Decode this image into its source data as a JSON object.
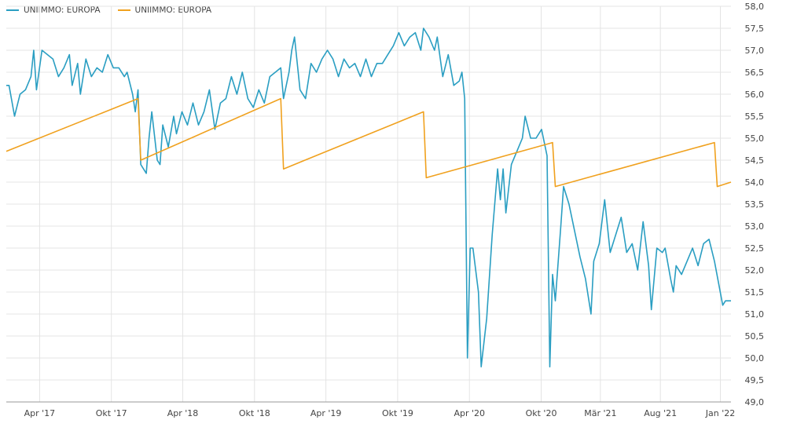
{
  "colors": {
    "series1": "#2a9ec2",
    "series2": "#f0a11e",
    "grid": "#e4e4e4",
    "axis": "#999999"
  },
  "chart_data": {
    "type": "line",
    "title": "",
    "xlabel": "",
    "ylabel": "",
    "ylim": [
      49.0,
      58.0
    ],
    "y_ticks": [
      "58,0",
      "57,5",
      "57,0",
      "56,5",
      "56,0",
      "55,5",
      "55,0",
      "54,5",
      "54,0",
      "53,5",
      "53,0",
      "52,5",
      "52,0",
      "51,5",
      "51,0",
      "50,5",
      "50,0",
      "49,5",
      "49,0"
    ],
    "x_ticks": [
      "Apr '17",
      "Okt '17",
      "Apr '18",
      "Okt '18",
      "Apr '19",
      "Okt '19",
      "Apr '20",
      "Okt '20",
      "Mär '21",
      "Aug '21",
      "Jan '22"
    ],
    "x_range": [
      "2017-01-06",
      "2022-01-14"
    ],
    "grid": true,
    "legend_position": "top-left",
    "series": [
      {
        "name": "UNIIMMO: EUROPA",
        "color": "#2a9ec2",
        "points": [
          [
            "2017-01-06",
            56.2
          ],
          [
            "2017-01-13",
            56.2
          ],
          [
            "2017-01-27",
            55.5
          ],
          [
            "2017-02-10",
            56.0
          ],
          [
            "2017-02-24",
            56.1
          ],
          [
            "2017-03-10",
            56.4
          ],
          [
            "2017-03-17",
            57.0
          ],
          [
            "2017-03-24",
            56.1
          ],
          [
            "2017-04-07",
            57.0
          ],
          [
            "2017-04-21",
            56.9
          ],
          [
            "2017-05-05",
            56.8
          ],
          [
            "2017-05-19",
            56.4
          ],
          [
            "2017-06-02",
            56.6
          ],
          [
            "2017-06-16",
            56.9
          ],
          [
            "2017-06-23",
            56.2
          ],
          [
            "2017-07-07",
            56.7
          ],
          [
            "2017-07-14",
            56.0
          ],
          [
            "2017-07-28",
            56.8
          ],
          [
            "2017-08-11",
            56.4
          ],
          [
            "2017-08-25",
            56.6
          ],
          [
            "2017-09-08",
            56.5
          ],
          [
            "2017-09-22",
            56.9
          ],
          [
            "2017-10-06",
            56.6
          ],
          [
            "2017-10-20",
            56.6
          ],
          [
            "2017-11-03",
            56.4
          ],
          [
            "2017-11-10",
            56.5
          ],
          [
            "2017-11-24",
            56.0
          ],
          [
            "2017-12-01",
            55.6
          ],
          [
            "2017-12-08",
            56.1
          ],
          [
            "2017-12-15",
            54.4
          ],
          [
            "2017-12-29",
            54.2
          ],
          [
            "2018-01-05",
            55.0
          ],
          [
            "2018-01-12",
            55.6
          ],
          [
            "2018-01-26",
            54.5
          ],
          [
            "2018-02-02",
            54.4
          ],
          [
            "2018-02-09",
            55.3
          ],
          [
            "2018-02-23",
            54.8
          ],
          [
            "2018-03-09",
            55.5
          ],
          [
            "2018-03-16",
            55.1
          ],
          [
            "2018-03-30",
            55.6
          ],
          [
            "2018-04-13",
            55.3
          ],
          [
            "2018-04-27",
            55.8
          ],
          [
            "2018-05-11",
            55.3
          ],
          [
            "2018-05-25",
            55.6
          ],
          [
            "2018-06-08",
            56.1
          ],
          [
            "2018-06-22",
            55.2
          ],
          [
            "2018-07-06",
            55.8
          ],
          [
            "2018-07-20",
            55.9
          ],
          [
            "2018-08-03",
            56.4
          ],
          [
            "2018-08-17",
            56.0
          ],
          [
            "2018-08-31",
            56.5
          ],
          [
            "2018-09-14",
            55.9
          ],
          [
            "2018-09-28",
            55.7
          ],
          [
            "2018-10-12",
            56.1
          ],
          [
            "2018-10-26",
            55.8
          ],
          [
            "2018-11-09",
            56.4
          ],
          [
            "2018-11-23",
            56.5
          ],
          [
            "2018-12-07",
            56.6
          ],
          [
            "2018-12-14",
            55.9
          ],
          [
            "2018-12-28",
            56.5
          ],
          [
            "2019-01-04",
            57.0
          ],
          [
            "2019-01-11",
            57.3
          ],
          [
            "2019-01-25",
            56.1
          ],
          [
            "2019-02-08",
            55.9
          ],
          [
            "2019-02-22",
            56.7
          ],
          [
            "2019-03-08",
            56.5
          ],
          [
            "2019-03-22",
            56.8
          ],
          [
            "2019-04-05",
            57.0
          ],
          [
            "2019-04-19",
            56.8
          ],
          [
            "2019-05-03",
            56.4
          ],
          [
            "2019-05-17",
            56.8
          ],
          [
            "2019-05-31",
            56.6
          ],
          [
            "2019-06-14",
            56.7
          ],
          [
            "2019-06-28",
            56.4
          ],
          [
            "2019-07-12",
            56.8
          ],
          [
            "2019-07-26",
            56.4
          ],
          [
            "2019-08-09",
            56.7
          ],
          [
            "2019-08-23",
            56.7
          ],
          [
            "2019-09-06",
            56.9
          ],
          [
            "2019-09-20",
            57.1
          ],
          [
            "2019-10-04",
            57.4
          ],
          [
            "2019-10-18",
            57.1
          ],
          [
            "2019-11-01",
            57.3
          ],
          [
            "2019-11-15",
            57.4
          ],
          [
            "2019-11-29",
            57.0
          ],
          [
            "2019-12-06",
            57.5
          ],
          [
            "2019-12-20",
            57.3
          ],
          [
            "2020-01-03",
            57.0
          ],
          [
            "2020-01-10",
            57.3
          ],
          [
            "2020-01-24",
            56.4
          ],
          [
            "2020-02-07",
            56.9
          ],
          [
            "2020-02-21",
            56.2
          ],
          [
            "2020-03-06",
            56.3
          ],
          [
            "2020-03-13",
            56.5
          ],
          [
            "2020-03-20",
            55.9
          ],
          [
            "2020-03-27",
            50.0
          ],
          [
            "2020-04-03",
            52.5
          ],
          [
            "2020-04-10",
            52.5
          ],
          [
            "2020-04-24",
            51.5
          ],
          [
            "2020-05-01",
            49.8
          ],
          [
            "2020-05-15",
            50.9
          ],
          [
            "2020-05-29",
            52.8
          ],
          [
            "2020-06-12",
            54.3
          ],
          [
            "2020-06-19",
            53.6
          ],
          [
            "2020-06-26",
            54.3
          ],
          [
            "2020-07-03",
            53.3
          ],
          [
            "2020-07-17",
            54.4
          ],
          [
            "2020-07-31",
            54.7
          ],
          [
            "2020-08-14",
            55.0
          ],
          [
            "2020-08-21",
            55.5
          ],
          [
            "2020-09-04",
            55.0
          ],
          [
            "2020-09-18",
            55.0
          ],
          [
            "2020-10-02",
            55.2
          ],
          [
            "2020-10-16",
            54.6
          ],
          [
            "2020-10-23",
            49.8
          ],
          [
            "2020-10-30",
            51.9
          ],
          [
            "2020-11-06",
            51.3
          ],
          [
            "2020-11-20",
            53.0
          ],
          [
            "2020-11-27",
            53.9
          ],
          [
            "2020-12-11",
            53.5
          ],
          [
            "2020-12-25",
            52.9
          ],
          [
            "2021-01-08",
            52.3
          ],
          [
            "2021-01-22",
            51.8
          ],
          [
            "2021-02-05",
            51.0
          ],
          [
            "2021-02-12",
            52.2
          ],
          [
            "2021-02-26",
            52.6
          ],
          [
            "2021-03-12",
            53.6
          ],
          [
            "2021-03-26",
            52.4
          ],
          [
            "2021-04-09",
            52.8
          ],
          [
            "2021-04-23",
            53.2
          ],
          [
            "2021-05-07",
            52.4
          ],
          [
            "2021-05-21",
            52.6
          ],
          [
            "2021-06-04",
            52.0
          ],
          [
            "2021-06-18",
            53.1
          ],
          [
            "2021-07-02",
            52.1
          ],
          [
            "2021-07-09",
            51.1
          ],
          [
            "2021-07-23",
            52.5
          ],
          [
            "2021-08-06",
            52.4
          ],
          [
            "2021-08-13",
            52.5
          ],
          [
            "2021-08-27",
            51.8
          ],
          [
            "2021-09-03",
            51.5
          ],
          [
            "2021-09-10",
            52.1
          ],
          [
            "2021-09-24",
            51.9
          ],
          [
            "2021-10-08",
            52.2
          ],
          [
            "2021-10-22",
            52.5
          ],
          [
            "2021-11-05",
            52.1
          ],
          [
            "2021-11-19",
            52.6
          ],
          [
            "2021-12-03",
            52.7
          ],
          [
            "2021-12-17",
            52.2
          ],
          [
            "2022-01-07",
            51.2
          ],
          [
            "2022-01-14",
            51.3
          ],
          [
            "2022-01-28",
            51.3
          ]
        ]
      },
      {
        "name": "UNIIMMO: EUROPA",
        "color": "#f0a11e",
        "points": [
          [
            "2017-01-06",
            54.7
          ],
          [
            "2017-12-08",
            55.9
          ],
          [
            "2017-12-15",
            54.5
          ],
          [
            "2018-12-07",
            55.9
          ],
          [
            "2018-12-14",
            54.3
          ],
          [
            "2019-12-06",
            55.6
          ],
          [
            "2019-12-13",
            54.1
          ],
          [
            "2020-10-30",
            54.9
          ],
          [
            "2020-11-06",
            53.9
          ],
          [
            "2021-12-17",
            54.9
          ],
          [
            "2021-12-24",
            53.9
          ],
          [
            "2022-01-28",
            54.0
          ]
        ]
      }
    ]
  }
}
